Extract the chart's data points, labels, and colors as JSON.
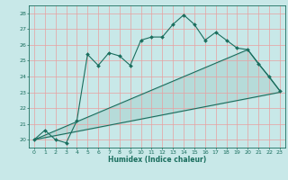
{
  "xlabel": "Humidex (Indice chaleur)",
  "bg_color": "#c8e8e8",
  "grid_color": "#e8a0a0",
  "line_color": "#1a6e5e",
  "xlim": [
    -0.5,
    23.5
  ],
  "ylim": [
    19.5,
    28.5
  ],
  "xticks": [
    0,
    1,
    2,
    3,
    4,
    5,
    6,
    7,
    8,
    9,
    10,
    11,
    12,
    13,
    14,
    15,
    16,
    17,
    18,
    19,
    20,
    21,
    22,
    23
  ],
  "yticks": [
    20,
    21,
    22,
    23,
    24,
    25,
    26,
    27,
    28
  ],
  "main_line": {
    "x": [
      0,
      1,
      2,
      3,
      4,
      5,
      6,
      7,
      8,
      9,
      10,
      11,
      12,
      13,
      14,
      15,
      16,
      17,
      18,
      19,
      20,
      21,
      22,
      23
    ],
    "y": [
      20.0,
      20.6,
      20.0,
      19.8,
      21.2,
      25.4,
      24.7,
      25.5,
      25.3,
      24.7,
      26.3,
      26.5,
      26.5,
      27.3,
      27.9,
      27.3,
      26.3,
      26.8,
      26.3,
      25.8,
      25.7,
      24.8,
      24.0,
      23.1
    ]
  },
  "lower_line": {
    "x": [
      0,
      23
    ],
    "y": [
      20.0,
      23.0
    ]
  },
  "upper_line": {
    "x": [
      0,
      20,
      23
    ],
    "y": [
      20.0,
      25.7,
      23.1
    ]
  },
  "figsize": [
    3.2,
    2.0
  ],
  "dpi": 100
}
